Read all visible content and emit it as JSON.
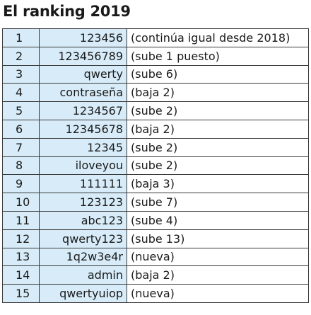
{
  "title": "El ranking 2019",
  "table": {
    "rows": [
      [
        1,
        "123456",
        "(continúa igual desde 2018)"
      ],
      [
        2,
        "123456789",
        "(sube 1 puesto)"
      ],
      [
        3,
        "qwerty",
        "(sube 6)"
      ],
      [
        4,
        "contraseña",
        "(baja 2)"
      ],
      [
        5,
        "1234567",
        "(sube 2)"
      ],
      [
        6,
        "12345678",
        "(baja 2)"
      ],
      [
        7,
        "12345",
        "(sube 2)"
      ],
      [
        8,
        "iloveyou",
        "(sube 2)"
      ],
      [
        9,
        "111111",
        "(baja 3)"
      ],
      [
        10,
        "123123",
        "(sube 7)"
      ],
      [
        11,
        "abc123",
        "(sube 4)"
      ],
      [
        12,
        "qwerty123",
        "(sube 13)"
      ],
      [
        13,
        "1q2w3e4r",
        "(nueva)"
      ],
      [
        14,
        "admin",
        "(baja 2)"
      ],
      [
        15,
        "qwertyuiop",
        "(nueva)"
      ]
    ]
  }
}
